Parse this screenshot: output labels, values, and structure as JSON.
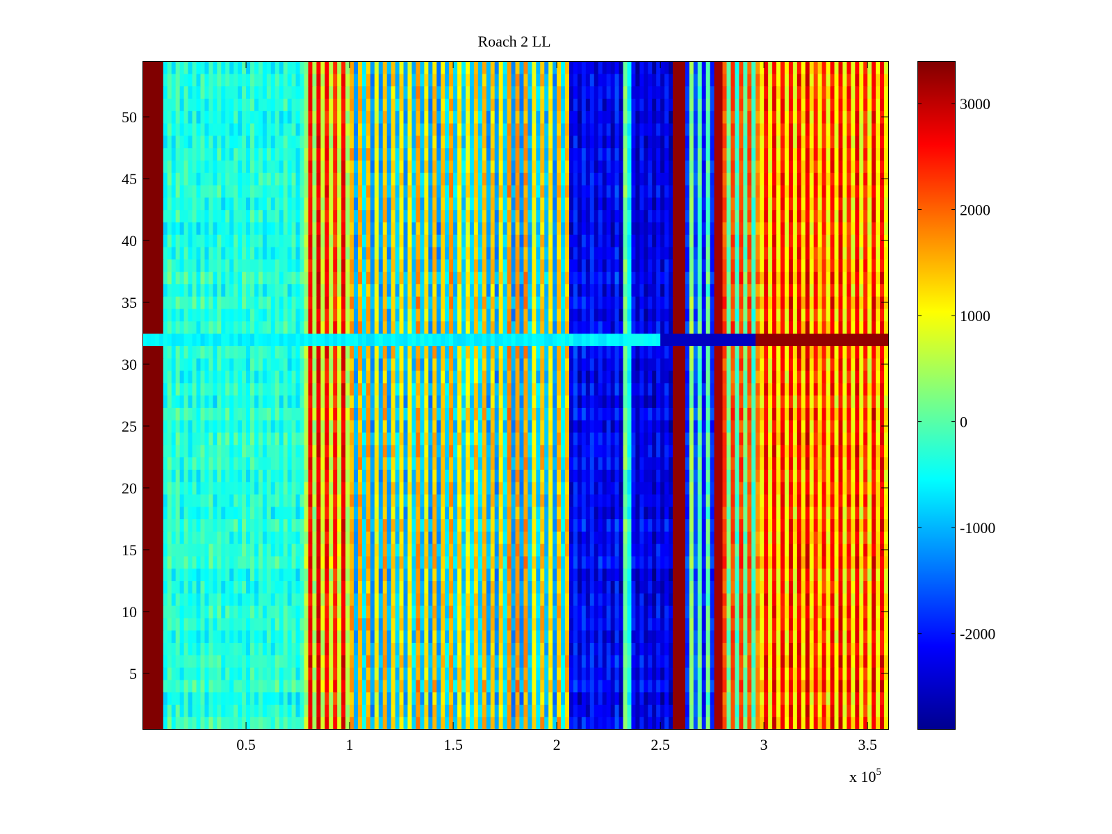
{
  "chart_data": {
    "type": "heatmap",
    "title": "Roach 2 LL",
    "xlabel": "",
    "ylabel": "",
    "x_multiplier_label": "x 10",
    "x_multiplier_exponent": "5",
    "xlim": [
      0,
      360000
    ],
    "ylim": [
      0.5,
      54.5
    ],
    "x_ticks": [
      {
        "value": 50000,
        "label": "0.5"
      },
      {
        "value": 100000,
        "label": "1"
      },
      {
        "value": 150000,
        "label": "1.5"
      },
      {
        "value": 200000,
        "label": "2"
      },
      {
        "value": 250000,
        "label": "2.5"
      },
      {
        "value": 300000,
        "label": "3"
      },
      {
        "value": 350000,
        "label": "3.5"
      }
    ],
    "y_ticks": [
      {
        "value": 5,
        "label": "5"
      },
      {
        "value": 10,
        "label": "10"
      },
      {
        "value": 15,
        "label": "15"
      },
      {
        "value": 20,
        "label": "20"
      },
      {
        "value": 25,
        "label": "25"
      },
      {
        "value": 30,
        "label": "30"
      },
      {
        "value": 35,
        "label": "35"
      },
      {
        "value": 40,
        "label": "40"
      },
      {
        "value": 45,
        "label": "45"
      },
      {
        "value": 50,
        "label": "50"
      }
    ],
    "colorbar": {
      "colormap": "jet",
      "clim": [
        -2900,
        3400
      ],
      "ticks": [
        {
          "value": 3000,
          "label": "3000"
        },
        {
          "value": 2000,
          "label": "2000"
        },
        {
          "value": 1000,
          "label": "1000"
        },
        {
          "value": 0,
          "label": "0"
        },
        {
          "value": -1000,
          "label": "-1000"
        },
        {
          "value": -2000,
          "label": "-2000"
        }
      ]
    },
    "rows": 54,
    "column_bands": [
      {
        "x_start": 0,
        "x_end": 10000,
        "mean": 3400,
        "stripe_amp": 0
      },
      {
        "x_start": 10000,
        "x_end": 78000,
        "mean": -350,
        "stripe_amp": 250
      },
      {
        "x_start": 78000,
        "x_end": 100000,
        "mean": 1400,
        "stripe_amp": 1600
      },
      {
        "x_start": 100000,
        "x_end": 206000,
        "mean": 0,
        "stripe_amp": 1700
      },
      {
        "x_start": 206000,
        "x_end": 232000,
        "mean": -2200,
        "stripe_amp": 350
      },
      {
        "x_start": 232000,
        "x_end": 237000,
        "mean": -200,
        "stripe_amp": 500
      },
      {
        "x_start": 237000,
        "x_end": 256000,
        "mean": -2300,
        "stripe_amp": 300
      },
      {
        "x_start": 256000,
        "x_end": 262000,
        "mean": 3300,
        "stripe_amp": 0
      },
      {
        "x_start": 262000,
        "x_end": 276000,
        "mean": -1000,
        "stripe_amp": 1500
      },
      {
        "x_start": 276000,
        "x_end": 280000,
        "mean": 3200,
        "stripe_amp": 0
      },
      {
        "x_start": 280000,
        "x_end": 298000,
        "mean": 800,
        "stripe_amp": 1500
      },
      {
        "x_start": 298000,
        "x_end": 360000,
        "mean": 1700,
        "stripe_amp": 1100
      }
    ],
    "anomalous_row": {
      "y": 32,
      "description_values": "mostly near -500 with red segment past 2.95e5"
    }
  }
}
